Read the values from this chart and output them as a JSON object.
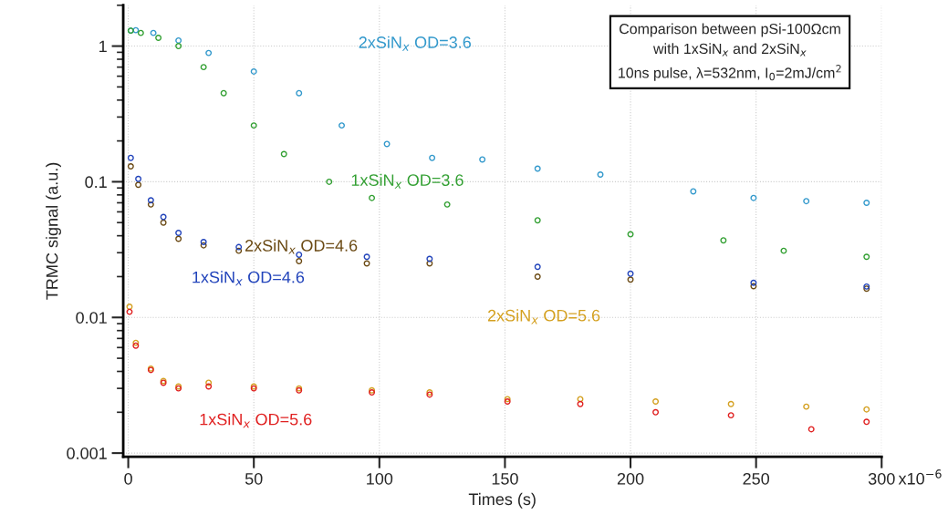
{
  "chart_data": {
    "type": "scatter",
    "xlabel": "Times (s)",
    "ylabel": "TRMC signal (a.u.)",
    "annotations": [
      "Comparison between pSi-100Ωcm\nwith 1xSiN$_{x}$ and 2xSiN$_{x}$\n10ns pulse, λ=532nm, I$_{0}$=2mJ/cm$^{2}$",
      "x10$^{−6}$"
    ],
    "log": "y",
    "grid": true,
    "marker": "circle",
    "xlim": [
      -2,
      300
    ],
    "xticks": [
      0,
      50,
      100,
      150,
      200,
      250,
      300
    ],
    "ylim": [
      0.00094,
      2
    ],
    "yticks": [
      0.001,
      0.01,
      0.1,
      1
    ],
    "series": [
      {
        "name": "2xSiN$_{x}$ OD=3.6",
        "color": "#3399cc",
        "x": [
          1,
          3,
          10,
          20,
          32,
          50,
          68,
          85,
          103,
          121,
          141,
          163,
          188,
          225,
          249,
          270,
          294
        ],
        "values": [
          1.3,
          1.31,
          1.25,
          1.1,
          0.89,
          0.65,
          0.45,
          0.26,
          0.19,
          0.15,
          0.146,
          0.125,
          0.113,
          0.085,
          0.076,
          0.072,
          0.07
        ]
      },
      {
        "name": "1xSiN$_{x}$ OD=3.6",
        "color": "#33a033",
        "x": [
          1,
          5,
          12,
          20,
          30,
          38,
          50,
          62,
          80,
          97,
          127,
          163,
          200,
          237,
          261,
          294
        ],
        "values": [
          1.3,
          1.25,
          1.15,
          1.0,
          0.7,
          0.45,
          0.26,
          0.16,
          0.1,
          0.076,
          0.068,
          0.052,
          0.041,
          0.037,
          0.031,
          0.028
        ]
      },
      {
        "name": "2xSiN$_{x}$ OD=4.6",
        "color": "#6b4a14",
        "x": [
          1,
          4,
          9,
          14,
          20,
          30,
          44,
          68,
          95,
          120,
          163,
          200,
          249,
          294
        ],
        "values": [
          0.13,
          0.095,
          0.068,
          0.05,
          0.038,
          0.034,
          0.031,
          0.026,
          0.025,
          0.025,
          0.02,
          0.019,
          0.017,
          0.0163
        ]
      },
      {
        "name": "1xSiN$_{x}$ OD=4.6",
        "color": "#2244bb",
        "x": [
          1,
          4,
          9,
          14,
          20,
          30,
          44,
          68,
          95,
          120,
          163,
          200,
          249,
          294
        ],
        "values": [
          0.15,
          0.105,
          0.073,
          0.055,
          0.042,
          0.036,
          0.033,
          0.029,
          0.028,
          0.027,
          0.0236,
          0.021,
          0.018,
          0.0169
        ]
      },
      {
        "name": "2xSiN$_{x}$ OD=5.6",
        "color": "#d4a020",
        "x": [
          0.5,
          3,
          9,
          14,
          20,
          32,
          50,
          68,
          97,
          120,
          151,
          180,
          210,
          240,
          270,
          294
        ],
        "values": [
          0.012,
          0.0065,
          0.0042,
          0.0034,
          0.0031,
          0.0033,
          0.0031,
          0.003,
          0.0029,
          0.0028,
          0.0025,
          0.0025,
          0.0024,
          0.0023,
          0.0022,
          0.0021
        ]
      },
      {
        "name": "1xSiN$_{x}$ OD=5.6",
        "color": "#e02020",
        "x": [
          0.5,
          3,
          9,
          14,
          20,
          32,
          50,
          68,
          97,
          120,
          151,
          180,
          210,
          240,
          272,
          294
        ],
        "values": [
          0.011,
          0.0062,
          0.0041,
          0.0033,
          0.003,
          0.0031,
          0.003,
          0.0029,
          0.0028,
          0.0027,
          0.0024,
          0.0023,
          0.002,
          0.0019,
          0.0015,
          0.0017
        ]
      }
    ]
  }
}
